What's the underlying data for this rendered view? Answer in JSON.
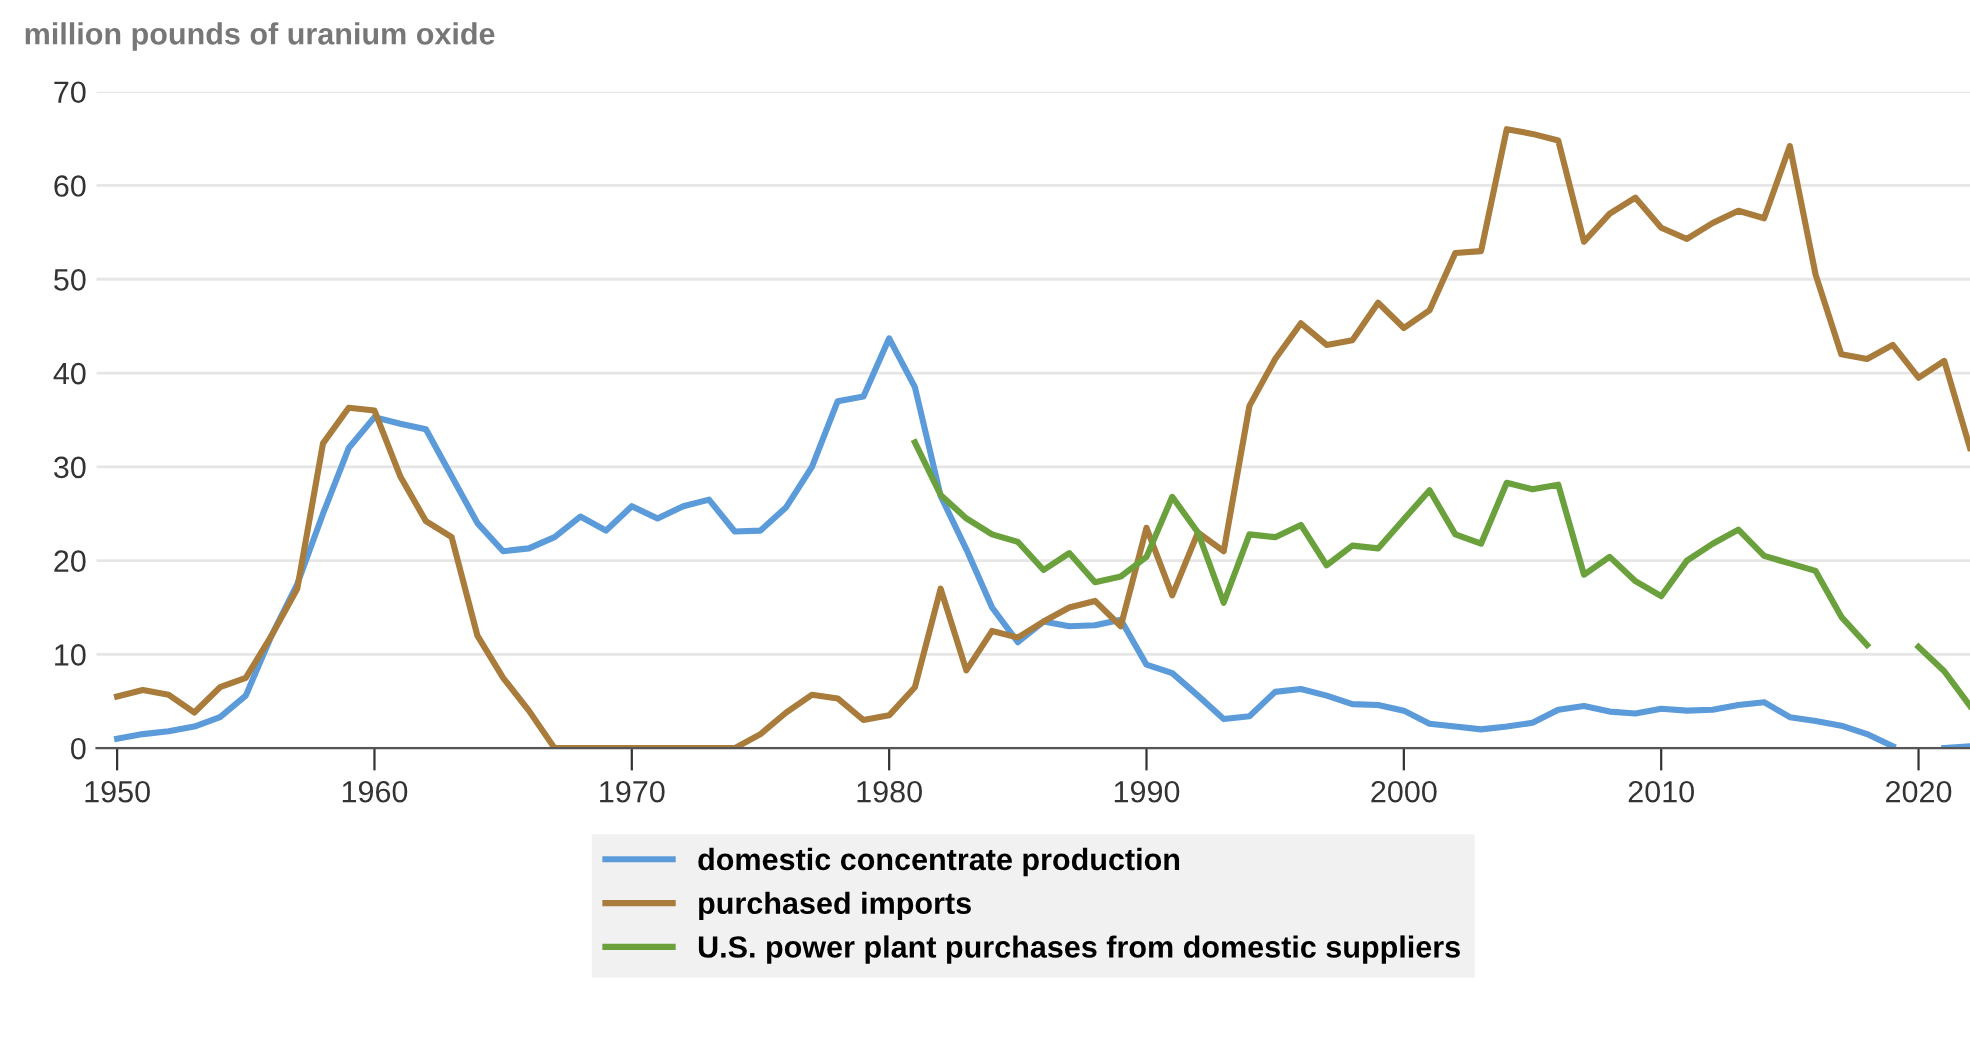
{
  "chart_data": {
    "type": "line",
    "ylabel": "million pounds of uranium oxide",
    "x": [
      1950,
      1951,
      1952,
      1953,
      1954,
      1955,
      1956,
      1957,
      1958,
      1959,
      1960,
      1961,
      1962,
      1963,
      1964,
      1965,
      1966,
      1967,
      1968,
      1969,
      1970,
      1971,
      1972,
      1973,
      1974,
      1975,
      1976,
      1977,
      1978,
      1979,
      1980,
      1981,
      1982,
      1983,
      1984,
      1985,
      1986,
      1987,
      1988,
      1989,
      1990,
      1991,
      1992,
      1993,
      1994,
      1995,
      1996,
      1997,
      1998,
      1999,
      2000,
      2001,
      2002,
      2003,
      2004,
      2005,
      2006,
      2007,
      2008,
      2009,
      2010,
      2011,
      2012,
      2013,
      2014,
      2015,
      2016,
      2017,
      2018,
      2019,
      2020,
      2021,
      2022
    ],
    "series": [
      {
        "name": "domestic concentrate production",
        "color": "#5b9bd9",
        "values": [
          1,
          1.5,
          1.8,
          2.3,
          3.3,
          5.6,
          12,
          17.5,
          25,
          32,
          35.3,
          34.6,
          34,
          29,
          24,
          21,
          21.3,
          22.5,
          24.7,
          23.2,
          25.8,
          24.5,
          25.8,
          26.5,
          23.1,
          23.2,
          25.7,
          30,
          37,
          37.5,
          43.7,
          38.5,
          26.9,
          21.2,
          15,
          11.3,
          13.5,
          13,
          13.1,
          13.7,
          8.9,
          8,
          5.6,
          3.1,
          3.4,
          6,
          6.3,
          5.6,
          4.7,
          4.6,
          4,
          2.6,
          2.3,
          2,
          2.3,
          2.7,
          4.1,
          4.5,
          3.9,
          3.7,
          4.2,
          4,
          4.1,
          4.6,
          4.9,
          3.3,
          2.9,
          2.4,
          1.5,
          0.2,
          null,
          0,
          0.2
        ]
      },
      {
        "name": "purchased imports",
        "color": "#a97c3c",
        "values": [
          5.5,
          6.2,
          5.7,
          3.8,
          6.5,
          7.5,
          12,
          17,
          32.5,
          36.3,
          36,
          29,
          24.2,
          22.5,
          12,
          7.5,
          4,
          0,
          0,
          0,
          0,
          0,
          0,
          0,
          0,
          1.5,
          3.8,
          5.7,
          5.3,
          3,
          3.5,
          6.5,
          17,
          8.3,
          12.5,
          11.8,
          13.5,
          15,
          15.7,
          13,
          23.5,
          16.3,
          23,
          21,
          36.5,
          41.5,
          45.3,
          43,
          43.5,
          47.5,
          44.8,
          46.7,
          52.8,
          53,
          66,
          65.5,
          64.8,
          54,
          57,
          58.7,
          55.5,
          54.3,
          56,
          57.3,
          56.5,
          64.2,
          50.5,
          42,
          41.5,
          43,
          39.5,
          41.3,
          32
        ]
      },
      {
        "name": "U.S. power plant purchases from domestic suppliers",
        "color": "#6aa13c",
        "values": [
          null,
          null,
          null,
          null,
          null,
          null,
          null,
          null,
          null,
          null,
          null,
          null,
          null,
          null,
          null,
          null,
          null,
          null,
          null,
          null,
          null,
          null,
          null,
          null,
          null,
          null,
          null,
          null,
          null,
          null,
          null,
          32.6,
          27,
          24.5,
          22.8,
          22,
          19,
          20.8,
          17.7,
          18.3,
          20.4,
          26.8,
          23,
          15.5,
          22.8,
          22.5,
          23.8,
          19.5,
          21.6,
          21.3,
          24.4,
          27.5,
          22.8,
          21.8,
          28.3,
          27.6,
          28.1,
          18.5,
          20.4,
          17.8,
          16.2,
          20,
          21.8,
          23.3,
          20.5,
          19.7,
          18.9,
          14,
          11,
          null,
          10.8,
          8.2,
          4.5
        ]
      }
    ],
    "xlim": [
      1949.2,
      2022
    ],
    "xticks": [
      1950,
      1960,
      1970,
      1980,
      1990,
      2000,
      2010,
      2020
    ],
    "ylim": [
      0,
      70
    ],
    "yticks": [
      0,
      10,
      20,
      30,
      40,
      50,
      60,
      70
    ],
    "grid": "y",
    "legend": "bottom",
    "marker": "none",
    "line_style": "solid"
  }
}
